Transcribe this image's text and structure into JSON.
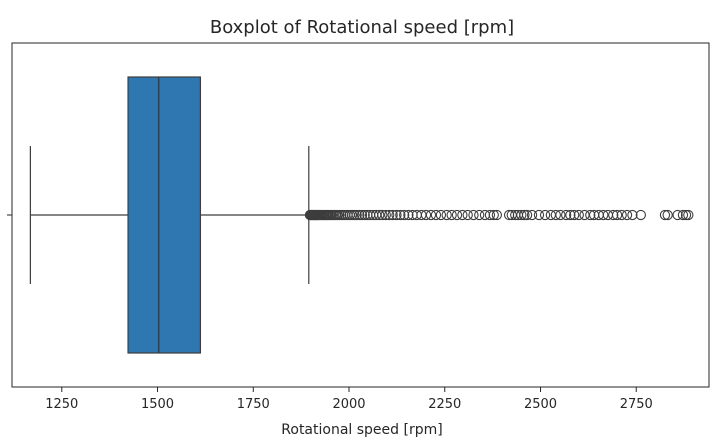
{
  "chart_data": {
    "type": "boxplot",
    "title": "Boxplot of Rotational speed [rpm]",
    "xlabel": "Rotational speed [rpm]",
    "ylabel": "",
    "xlim": [
      1120,
      2940
    ],
    "xticks": [
      1250,
      1500,
      1750,
      2000,
      2250,
      2500,
      2750
    ],
    "grid": false,
    "orientation": "horizontal",
    "box": {
      "whisker_low": 1168,
      "q1": 1423,
      "median": 1503,
      "q3": 1612,
      "whisker_high": 1895,
      "color": "#2e77b0"
    },
    "outliers": [
      1898,
      1900,
      1902,
      1904,
      1906,
      1908,
      1910,
      1912,
      1914,
      1916,
      1918,
      1920,
      1923,
      1926,
      1929,
      1932,
      1935,
      1938,
      1941,
      1944,
      1947,
      1950,
      1954,
      1958,
      1962,
      1966,
      1970,
      1975,
      1980,
      1985,
      1990,
      1996,
      2002,
      2008,
      2014,
      2020,
      2027,
      2034,
      2041,
      2048,
      2055,
      2063,
      2071,
      2079,
      2087,
      2096,
      2105,
      2114,
      2124,
      2134,
      2144,
      2155,
      2166,
      2177,
      2189,
      2201,
      2214,
      2227,
      2240,
      2255,
      2268,
      2282,
      2296,
      2310,
      2325,
      2340,
      2355,
      2368,
      2378,
      2386,
      2418,
      2425,
      2434,
      2441,
      2450,
      2458,
      2465,
      2478,
      2496,
      2512,
      2527,
      2540,
      2552,
      2567,
      2578,
      2588,
      2600,
      2615,
      2630,
      2640,
      2652,
      2664,
      2676,
      2690,
      2700,
      2712,
      2726,
      2740,
      2762,
      2825,
      2832,
      2858,
      2872,
      2880,
      2886
    ]
  }
}
